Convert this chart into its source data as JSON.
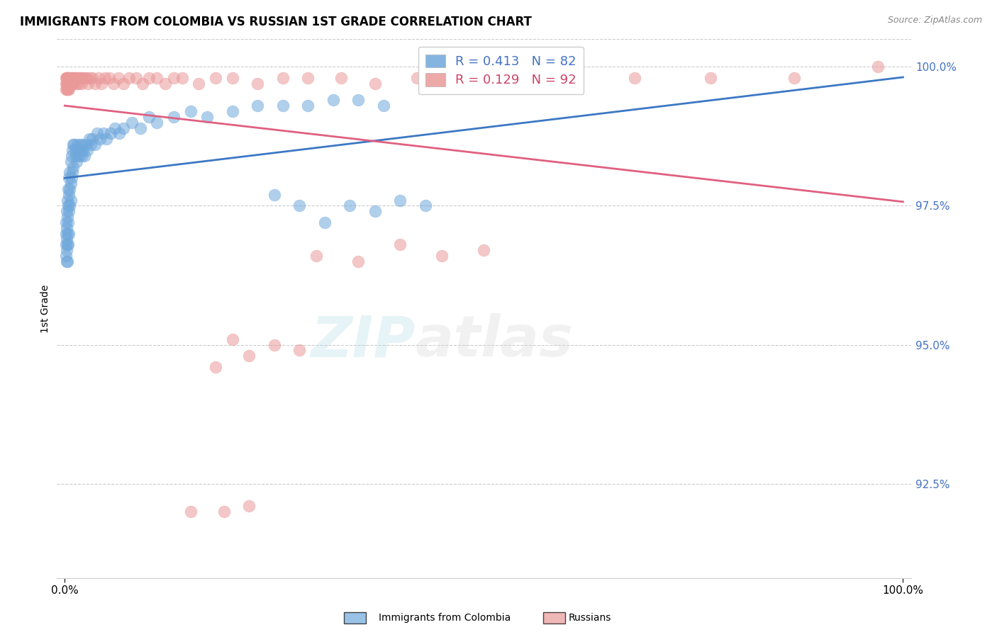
{
  "title": "IMMIGRANTS FROM COLOMBIA VS RUSSIAN 1ST GRADE CORRELATION CHART",
  "source": "Source: ZipAtlas.com",
  "ylabel": "1st Grade",
  "ytick_values": [
    0.925,
    0.95,
    0.975,
    1.0
  ],
  "ytick_labels": [
    "92.5%",
    "95.0%",
    "97.5%",
    "100.0%"
  ],
  "ylim": [
    0.908,
    1.005
  ],
  "xlim": [
    -0.01,
    1.01
  ],
  "colombia_R": 0.413,
  "colombia_N": 82,
  "russia_R": 0.129,
  "russia_N": 92,
  "colombia_color": "#6fa8dc",
  "russia_color": "#ea9999",
  "colombia_trend_color": "#3c78c4",
  "russia_trend_color": "#e06080",
  "colombia_x": [
    0.001,
    0.001,
    0.001,
    0.001,
    0.002,
    0.002,
    0.002,
    0.002,
    0.002,
    0.003,
    0.003,
    0.003,
    0.003,
    0.003,
    0.004,
    0.004,
    0.004,
    0.004,
    0.005,
    0.005,
    0.005,
    0.005,
    0.006,
    0.006,
    0.006,
    0.007,
    0.007,
    0.007,
    0.008,
    0.008,
    0.009,
    0.009,
    0.01,
    0.01,
    0.011,
    0.012,
    0.013,
    0.014,
    0.015,
    0.016,
    0.017,
    0.018,
    0.019,
    0.02,
    0.021,
    0.022,
    0.023,
    0.025,
    0.027,
    0.029,
    0.031,
    0.033,
    0.036,
    0.039,
    0.042,
    0.046,
    0.05,
    0.055,
    0.06,
    0.065,
    0.07,
    0.08,
    0.09,
    0.1,
    0.11,
    0.13,
    0.15,
    0.17,
    0.2,
    0.23,
    0.26,
    0.29,
    0.32,
    0.35,
    0.38,
    0.25,
    0.28,
    0.31,
    0.34,
    0.37,
    0.4,
    0.43
  ],
  "colombia_y": [
    0.97,
    0.972,
    0.968,
    0.966,
    0.974,
    0.971,
    0.969,
    0.967,
    0.965,
    0.976,
    0.973,
    0.97,
    0.968,
    0.965,
    0.978,
    0.975,
    0.972,
    0.968,
    0.98,
    0.977,
    0.974,
    0.97,
    0.981,
    0.978,
    0.975,
    0.983,
    0.979,
    0.976,
    0.984,
    0.98,
    0.985,
    0.981,
    0.986,
    0.982,
    0.986,
    0.985,
    0.984,
    0.983,
    0.986,
    0.985,
    0.984,
    0.986,
    0.985,
    0.984,
    0.986,
    0.985,
    0.984,
    0.986,
    0.985,
    0.987,
    0.986,
    0.987,
    0.986,
    0.988,
    0.987,
    0.988,
    0.987,
    0.988,
    0.989,
    0.988,
    0.989,
    0.99,
    0.989,
    0.991,
    0.99,
    0.991,
    0.992,
    0.991,
    0.992,
    0.993,
    0.993,
    0.993,
    0.994,
    0.994,
    0.993,
    0.977,
    0.975,
    0.972,
    0.975,
    0.974,
    0.976,
    0.975
  ],
  "russia_x": [
    0.001,
    0.001,
    0.001,
    0.002,
    0.002,
    0.002,
    0.002,
    0.003,
    0.003,
    0.003,
    0.003,
    0.003,
    0.004,
    0.004,
    0.004,
    0.005,
    0.005,
    0.005,
    0.006,
    0.006,
    0.006,
    0.007,
    0.007,
    0.008,
    0.008,
    0.009,
    0.009,
    0.01,
    0.01,
    0.011,
    0.012,
    0.013,
    0.014,
    0.015,
    0.016,
    0.017,
    0.018,
    0.019,
    0.02,
    0.022,
    0.024,
    0.026,
    0.028,
    0.03,
    0.033,
    0.036,
    0.04,
    0.044,
    0.048,
    0.053,
    0.058,
    0.064,
    0.07,
    0.077,
    0.085,
    0.093,
    0.1,
    0.11,
    0.12,
    0.13,
    0.14,
    0.16,
    0.18,
    0.2,
    0.23,
    0.26,
    0.29,
    0.33,
    0.37,
    0.42,
    0.47,
    0.53,
    0.6,
    0.68,
    0.77,
    0.87,
    0.97,
    0.3,
    0.35,
    0.4,
    0.45,
    0.5,
    0.2,
    0.25,
    0.22,
    0.28,
    0.18,
    0.15,
    0.22,
    0.19
  ],
  "russia_y": [
    0.998,
    0.997,
    0.996,
    0.998,
    0.997,
    0.996,
    0.998,
    0.998,
    0.997,
    0.996,
    0.998,
    0.997,
    0.998,
    0.997,
    0.996,
    0.998,
    0.997,
    0.996,
    0.998,
    0.997,
    0.998,
    0.998,
    0.997,
    0.998,
    0.997,
    0.998,
    0.997,
    0.998,
    0.997,
    0.998,
    0.998,
    0.998,
    0.997,
    0.998,
    0.998,
    0.997,
    0.998,
    0.998,
    0.997,
    0.998,
    0.998,
    0.998,
    0.997,
    0.998,
    0.998,
    0.997,
    0.998,
    0.997,
    0.998,
    0.998,
    0.997,
    0.998,
    0.997,
    0.998,
    0.998,
    0.997,
    0.998,
    0.998,
    0.997,
    0.998,
    0.998,
    0.997,
    0.998,
    0.998,
    0.997,
    0.998,
    0.998,
    0.998,
    0.997,
    0.998,
    0.998,
    0.998,
    0.998,
    0.998,
    0.998,
    0.998,
    1.0,
    0.966,
    0.965,
    0.968,
    0.966,
    0.967,
    0.951,
    0.95,
    0.948,
    0.949,
    0.946,
    0.92,
    0.921,
    0.92
  ]
}
